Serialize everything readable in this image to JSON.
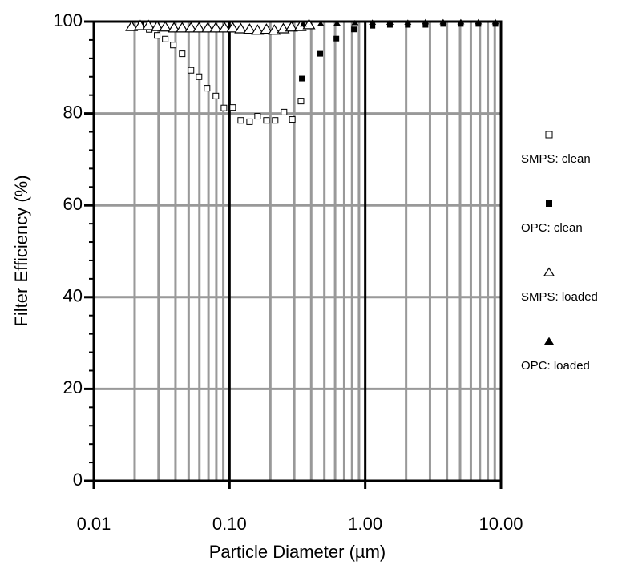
{
  "chart_data": {
    "type": "scatter",
    "log_x": true,
    "x_label": "Particle Diameter (µm)",
    "y_label": "Filter Efficiency (%)",
    "xlim": [
      0.01,
      10
    ],
    "ylim": [
      0,
      100
    ],
    "xticks": [
      0.01,
      {
        "value": 0.1,
        "label": "0.10"
      },
      {
        "value": 1,
        "label": "1.00"
      },
      {
        "value": 10,
        "label": "10.00"
      }
    ],
    "yticks": [
      0,
      20,
      40,
      60,
      80,
      100
    ],
    "y_minor_ticks": [
      4,
      8,
      12,
      16,
      24,
      28,
      32,
      36,
      44,
      48,
      52,
      56,
      64,
      68,
      72,
      76,
      84,
      88,
      92,
      96
    ],
    "x_minor_grid": [
      0.02,
      0.03,
      0.04,
      0.05,
      0.06,
      0.07,
      0.08,
      0.09,
      0.2,
      0.3,
      0.4,
      0.5,
      0.6,
      0.7,
      0.8,
      0.9,
      2,
      3,
      4,
      5,
      6,
      7,
      8,
      9
    ],
    "grid": true,
    "legend": "right",
    "series": [
      {
        "name": "SMPS: clean",
        "color": "#000000",
        "marker": "square-open",
        "x": [
          0.0223,
          0.0256,
          0.0293,
          0.0336,
          0.0385,
          0.0448,
          0.052,
          0.0596,
          0.0683,
          0.0793,
          0.091,
          0.1056,
          0.121,
          0.1406,
          0.161,
          0.187,
          0.217,
          0.252,
          0.29,
          0.336
        ],
        "values": [
          99.1,
          98.3,
          97.0,
          96.2,
          94.9,
          93.0,
          89.4,
          88.0,
          85.5,
          83.8,
          81.2,
          81.3,
          78.5,
          78.2,
          79.4,
          78.5,
          78.5,
          80.3,
          78.7,
          82.7
        ]
      },
      {
        "name": "OPC: clean",
        "color": "#000000",
        "marker": "square",
        "x": [
          0.341,
          0.466,
          0.613,
          0.826,
          1.13,
          1.52,
          2.06,
          2.78,
          3.75,
          5.06,
          6.82,
          9.1
        ],
        "values": [
          87.6,
          93.0,
          96.3,
          98.3,
          99.1,
          99.3,
          99.3,
          99.3,
          99.5,
          99.5,
          99.5,
          99.5
        ]
      },
      {
        "name": "SMPS: loaded",
        "color": "#000000",
        "marker": "triangle-open",
        "x": [
          0.019,
          0.022,
          0.0253,
          0.0293,
          0.0336,
          0.039,
          0.0448,
          0.052,
          0.0596,
          0.0692,
          0.0793,
          0.092,
          0.1056,
          0.121,
          0.1406,
          0.161,
          0.187,
          0.214,
          0.249,
          0.286,
          0.332,
          0.385
        ],
        "values": [
          98.9,
          99.1,
          99.1,
          98.9,
          98.8,
          98.6,
          98.6,
          98.6,
          98.6,
          98.6,
          98.6,
          98.6,
          98.6,
          98.4,
          98.3,
          98.1,
          98.3,
          98.1,
          98.4,
          98.8,
          98.9,
          99.3
        ]
      },
      {
        "name": "OPC: loaded",
        "color": "#000000",
        "marker": "triangle",
        "x": [
          0.35,
          0.47,
          0.62,
          0.84,
          1.13,
          1.52,
          2.06,
          2.78,
          3.75,
          5.06,
          6.82,
          9.1
        ],
        "values": [
          99.4,
          99.5,
          99.6,
          99.7,
          99.8,
          99.8,
          99.8,
          99.9,
          99.9,
          99.9,
          99.9,
          99.9
        ]
      }
    ]
  }
}
